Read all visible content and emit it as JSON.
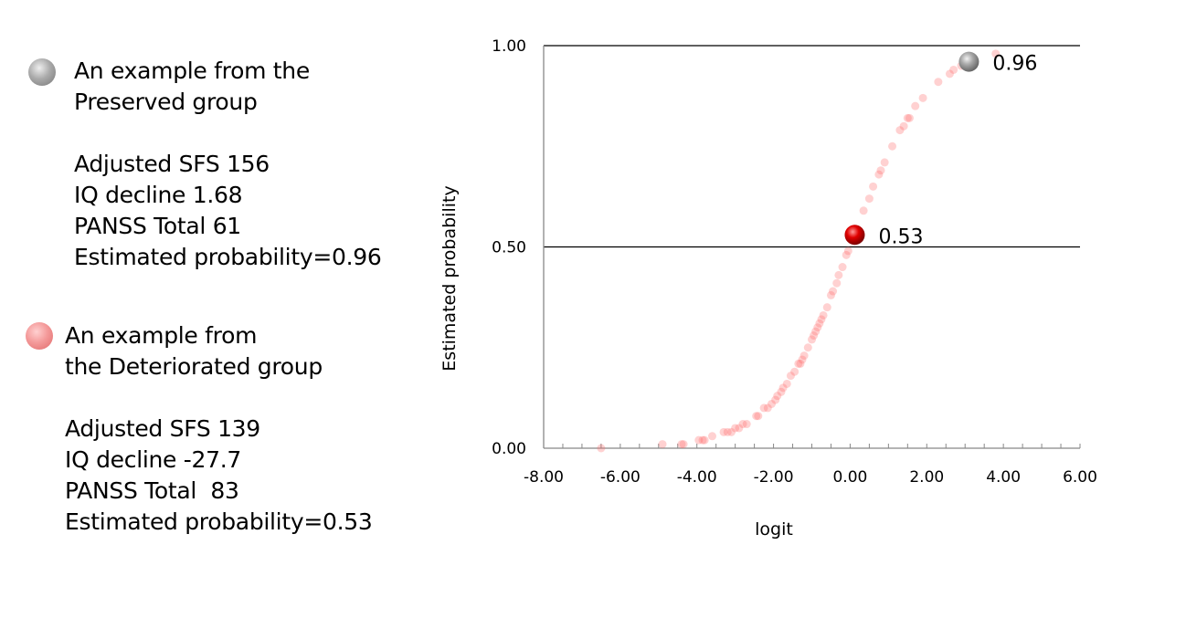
{
  "legend": {
    "preserved": {
      "icon": "gray-ball-icon",
      "title_lines": [
        "An example from the",
        "Preserved group"
      ],
      "detail_lines": [
        "Adjusted SFS 156",
        "IQ decline 1.68",
        "PANSS Total 61",
        "Estimated probability=0.96"
      ]
    },
    "deteriorated": {
      "icon": "red-ball-icon",
      "title_lines": [
        "An example from",
        "the Deteriorated group"
      ],
      "detail_lines": [
        "Adjusted SFS 139",
        "IQ decline -27.7",
        "PANSS Total  83",
        "Estimated probability=0.53"
      ]
    }
  },
  "chart_data": {
    "type": "scatter",
    "xlabel": "logit",
    "ylabel": "Estimated probability",
    "xlim": [
      -8,
      6
    ],
    "ylim": [
      0,
      1
    ],
    "x_ticks": [
      "-8.00",
      "-6.00",
      "-4.00",
      "-2.00",
      "0.00",
      "2.00",
      "4.00",
      "6.00"
    ],
    "y_ticks": [
      "0.00",
      "0.50",
      "1.00"
    ],
    "reference_lines_y": [
      0.5,
      1.0
    ],
    "colors": {
      "points": "#ff6666",
      "highlight_deteriorated": "#dd0000",
      "highlight_preserved": "#999999"
    },
    "points": [
      [
        -6.5,
        0.0
      ],
      [
        -4.9,
        0.01
      ],
      [
        -4.4,
        0.01
      ],
      [
        -4.35,
        0.01
      ],
      [
        -3.95,
        0.02
      ],
      [
        -3.85,
        0.02
      ],
      [
        -3.8,
        0.02
      ],
      [
        -3.6,
        0.03
      ],
      [
        -3.3,
        0.04
      ],
      [
        -3.2,
        0.04
      ],
      [
        -3.1,
        0.04
      ],
      [
        -3.0,
        0.05
      ],
      [
        -2.9,
        0.05
      ],
      [
        -2.8,
        0.06
      ],
      [
        -2.7,
        0.06
      ],
      [
        -2.45,
        0.08
      ],
      [
        -2.4,
        0.08
      ],
      [
        -2.25,
        0.1
      ],
      [
        -2.15,
        0.1
      ],
      [
        -2.05,
        0.11
      ],
      [
        -1.95,
        0.12
      ],
      [
        -1.9,
        0.13
      ],
      [
        -1.8,
        0.14
      ],
      [
        -1.75,
        0.15
      ],
      [
        -1.65,
        0.16
      ],
      [
        -1.55,
        0.18
      ],
      [
        -1.45,
        0.19
      ],
      [
        -1.35,
        0.21
      ],
      [
        -1.3,
        0.21
      ],
      [
        -1.25,
        0.22
      ],
      [
        -1.2,
        0.23
      ],
      [
        -1.1,
        0.25
      ],
      [
        -1.0,
        0.27
      ],
      [
        -0.95,
        0.28
      ],
      [
        -0.9,
        0.29
      ],
      [
        -0.85,
        0.3
      ],
      [
        -0.8,
        0.31
      ],
      [
        -0.75,
        0.32
      ],
      [
        -0.7,
        0.33
      ],
      [
        -0.6,
        0.35
      ],
      [
        -0.5,
        0.38
      ],
      [
        -0.45,
        0.39
      ],
      [
        -0.35,
        0.41
      ],
      [
        -0.3,
        0.43
      ],
      [
        -0.2,
        0.45
      ],
      [
        -0.1,
        0.48
      ],
      [
        -0.05,
        0.49
      ],
      [
        0.35,
        0.59
      ],
      [
        0.5,
        0.62
      ],
      [
        0.6,
        0.65
      ],
      [
        0.75,
        0.68
      ],
      [
        0.8,
        0.69
      ],
      [
        0.9,
        0.71
      ],
      [
        1.1,
        0.75
      ],
      [
        1.3,
        0.79
      ],
      [
        1.4,
        0.8
      ],
      [
        1.5,
        0.82
      ],
      [
        1.55,
        0.82
      ],
      [
        1.7,
        0.85
      ],
      [
        1.9,
        0.87
      ],
      [
        2.3,
        0.91
      ],
      [
        2.6,
        0.93
      ],
      [
        2.7,
        0.94
      ],
      [
        2.9,
        0.95
      ],
      [
        3.0,
        0.95
      ],
      [
        3.8,
        0.98
      ]
    ],
    "highlights": [
      {
        "x": 0.12,
        "y": 0.53,
        "label": "0.53",
        "group": "Deteriorated"
      },
      {
        "x": 3.1,
        "y": 0.96,
        "label": "0.96",
        "group": "Preserved"
      }
    ]
  }
}
